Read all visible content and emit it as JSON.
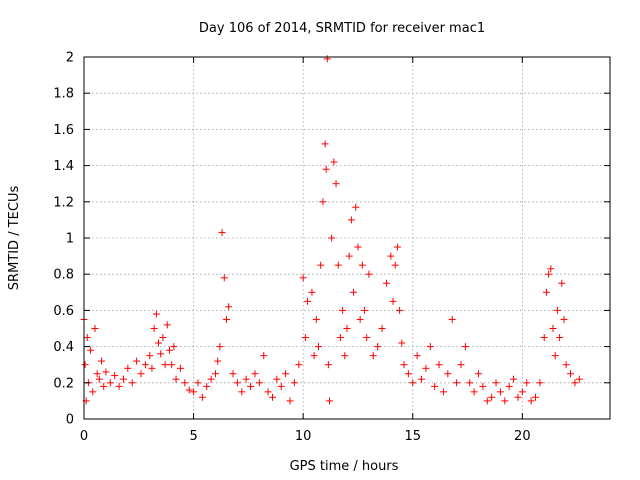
{
  "chart_data": {
    "type": "scatter",
    "title": "Day 106 of 2014, SRMTID for receiver mac1",
    "xlabel": "GPS time / hours",
    "ylabel": "SRMTID / TECUs",
    "xlim": [
      0,
      24
    ],
    "ylim": [
      0,
      2
    ],
    "xticks": [
      0,
      5,
      10,
      15,
      20
    ],
    "xtick_labels": [
      "0",
      "5",
      "10",
      "15",
      "20"
    ],
    "yticks": [
      0,
      0.2,
      0.4,
      0.6,
      0.8,
      1.0,
      1.2,
      1.4,
      1.6,
      1.8,
      2.0
    ],
    "ytick_labels": [
      "0",
      "0.2",
      "0.4",
      "0.6",
      "0.8",
      "1",
      "1.2",
      "1.4",
      "1.6",
      "1.8",
      "2"
    ],
    "grid": true,
    "marker": "+",
    "marker_color": "#ff0000",
    "series": [
      {
        "name": "SRMTID",
        "x": [
          0.0,
          0.05,
          0.1,
          0.15,
          0.2,
          0.3,
          0.4,
          0.5,
          0.6,
          0.7,
          0.8,
          0.9,
          1.0,
          1.2,
          1.4,
          1.6,
          1.8,
          2.0,
          2.2,
          2.4,
          2.6,
          2.8,
          3.0,
          3.1,
          3.2,
          3.3,
          3.4,
          3.5,
          3.6,
          3.7,
          3.8,
          3.9,
          4.0,
          4.1,
          4.2,
          4.4,
          4.6,
          4.8,
          5.0,
          5.2,
          5.4,
          5.6,
          5.8,
          6.0,
          6.1,
          6.2,
          6.3,
          6.4,
          6.5,
          6.6,
          6.8,
          7.0,
          7.2,
          7.4,
          7.6,
          7.8,
          8.0,
          8.2,
          8.4,
          8.6,
          8.8,
          9.0,
          9.2,
          9.4,
          9.6,
          9.8,
          10.0,
          10.1,
          10.2,
          10.4,
          10.5,
          10.6,
          10.7,
          10.8,
          10.9,
          11.0,
          11.05,
          11.1,
          11.15,
          11.2,
          11.3,
          11.4,
          11.5,
          11.6,
          11.7,
          11.8,
          11.9,
          12.0,
          12.1,
          12.2,
          12.3,
          12.4,
          12.5,
          12.6,
          12.7,
          12.8,
          12.9,
          13.0,
          13.2,
          13.4,
          13.6,
          13.8,
          14.0,
          14.1,
          14.2,
          14.3,
          14.4,
          14.5,
          14.6,
          14.8,
          15.0,
          15.2,
          15.4,
          15.6,
          15.8,
          16.0,
          16.2,
          16.4,
          16.6,
          16.8,
          17.0,
          17.2,
          17.4,
          17.6,
          17.8,
          18.0,
          18.2,
          18.4,
          18.6,
          18.8,
          19.0,
          19.2,
          19.4,
          19.6,
          19.8,
          20.0,
          20.2,
          20.4,
          20.6,
          20.8,
          21.0,
          21.1,
          21.2,
          21.3,
          21.4,
          21.5,
          21.6,
          21.7,
          21.8,
          21.9,
          22.0,
          22.2,
          22.4,
          22.6
        ],
        "y": [
          0.55,
          0.3,
          0.1,
          0.45,
          0.2,
          0.38,
          0.15,
          0.5,
          0.25,
          0.22,
          0.32,
          0.18,
          0.26,
          0.2,
          0.24,
          0.18,
          0.22,
          0.28,
          0.2,
          0.32,
          0.25,
          0.3,
          0.35,
          0.28,
          0.5,
          0.58,
          0.42,
          0.36,
          0.45,
          0.3,
          0.52,
          0.38,
          0.3,
          0.4,
          0.22,
          0.28,
          0.2,
          0.16,
          0.15,
          0.2,
          0.12,
          0.18,
          0.22,
          0.25,
          0.32,
          0.4,
          1.03,
          0.78,
          0.55,
          0.62,
          0.25,
          0.2,
          0.15,
          0.22,
          0.18,
          0.25,
          0.2,
          0.35,
          0.15,
          0.12,
          0.22,
          0.18,
          0.25,
          0.1,
          0.2,
          0.3,
          0.78,
          0.45,
          0.65,
          0.7,
          0.35,
          0.55,
          0.4,
          0.85,
          1.2,
          1.52,
          1.38,
          1.99,
          0.3,
          0.1,
          1.0,
          1.42,
          1.3,
          0.85,
          0.45,
          0.6,
          0.35,
          0.5,
          0.9,
          1.1,
          0.7,
          1.17,
          0.95,
          0.55,
          0.85,
          0.6,
          0.45,
          0.8,
          0.35,
          0.4,
          0.5,
          0.75,
          0.9,
          0.65,
          0.85,
          0.95,
          0.6,
          0.42,
          0.3,
          0.25,
          0.2,
          0.35,
          0.22,
          0.28,
          0.4,
          0.18,
          0.3,
          0.15,
          0.25,
          0.55,
          0.2,
          0.3,
          0.4,
          0.2,
          0.15,
          0.25,
          0.18,
          0.1,
          0.12,
          0.2,
          0.15,
          0.1,
          0.18,
          0.22,
          0.12,
          0.15,
          0.2,
          0.1,
          0.12,
          0.2,
          0.45,
          0.7,
          0.8,
          0.83,
          0.5,
          0.35,
          0.6,
          0.45,
          0.75,
          0.55,
          0.3,
          0.25,
          0.2,
          0.22
        ]
      }
    ]
  }
}
